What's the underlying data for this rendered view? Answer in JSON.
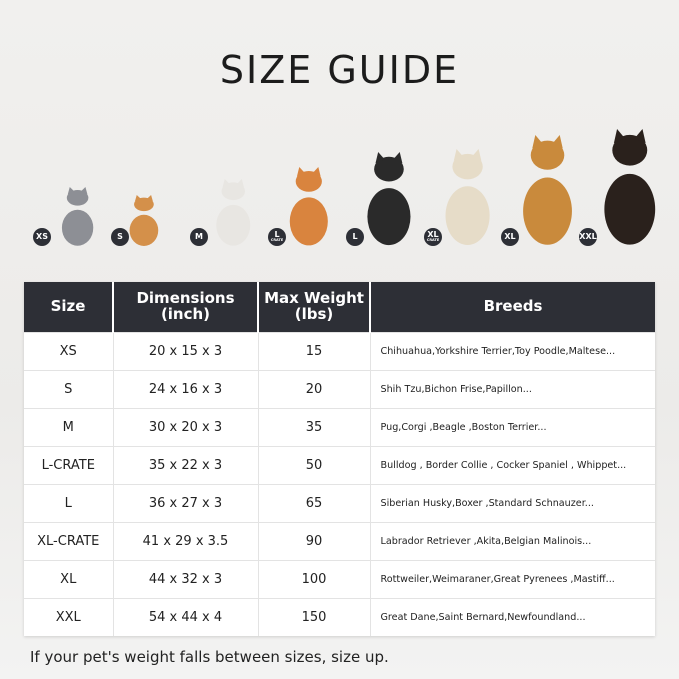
{
  "title": "SIZE GUIDE",
  "animals": [
    {
      "badge": "XS",
      "sub": "",
      "kind": "cat",
      "color": "#8d8f95"
    },
    {
      "badge": "S",
      "sub": "",
      "kind": "pomeranian",
      "color": "#d4904a"
    },
    {
      "badge": "M",
      "sub": "",
      "kind": "french-bulldog",
      "color": "#e8e6e2"
    },
    {
      "badge": "L",
      "sub": "CRATE",
      "kind": "shiba",
      "color": "#d9843e"
    },
    {
      "badge": "L",
      "sub": "",
      "kind": "border-collie",
      "color": "#2a2a2a"
    },
    {
      "badge": "XL",
      "sub": "CRATE",
      "kind": "labrador",
      "color": "#e6dcc8"
    },
    {
      "badge": "XL",
      "sub": "",
      "kind": "golden-retriever",
      "color": "#c98a3c"
    },
    {
      "badge": "XXL",
      "sub": "",
      "kind": "doberman",
      "color": "#2a211c"
    }
  ],
  "table": {
    "headers": [
      "Size",
      "Dimensions\n(inch)",
      "Max Weight\n(lbs)",
      "Breeds"
    ],
    "rows": [
      [
        "XS",
        "20 x 15 x 3",
        "15",
        "Chihuahua,Yorkshire Terrier,Toy Poodle,Maltese..."
      ],
      [
        "S",
        "24 x 16 x 3",
        "20",
        "Shih Tzu,Bichon Frise,Papillon..."
      ],
      [
        "M",
        "30 x 20 x 3",
        "35",
        "Pug,Corgi ,Beagle ,Boston Terrier..."
      ],
      [
        "L-CRATE",
        "35 x 22 x 3",
        "50",
        "Bulldog , Border Collie , Cocker Spaniel , Whippet..."
      ],
      [
        "L",
        "36 x 27 x 3",
        "65",
        "Siberian Husky,Boxer ,Standard Schnauzer..."
      ],
      [
        "XL-CRATE",
        "41 x 29 x 3.5",
        "90",
        "Labrador Retriever ,Akita,Belgian Malinois..."
      ],
      [
        "XL",
        "44 x 32 x 3",
        "100",
        "Rottweiler,Weimaraner,Great Pyrenees ,Mastiff..."
      ],
      [
        "XXL",
        "54 x 44 x 4",
        "150",
        "Great Dane,Saint Bernard,Newfoundland..."
      ]
    ]
  },
  "note": "If your pet's weight falls between sizes, size up."
}
